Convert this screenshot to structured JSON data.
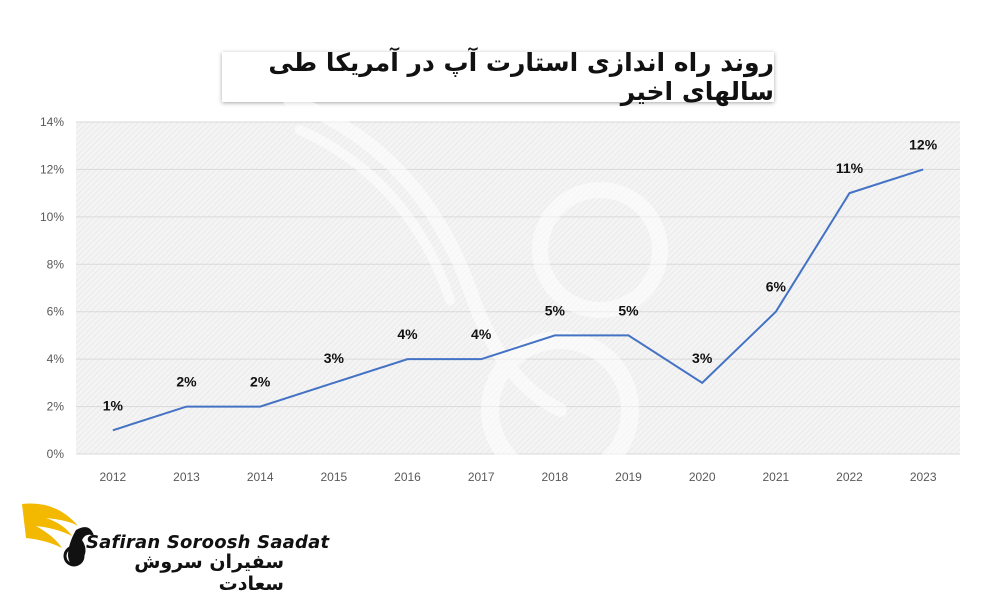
{
  "chart_data": {
    "type": "line",
    "title": "روند راه اندازی استارت آپ در آمریکا طی سالهای اخیر",
    "categories": [
      "2012",
      "2013",
      "2014",
      "2015",
      "2016",
      "2017",
      "2018",
      "2019",
      "2020",
      "2021",
      "2022",
      "2023"
    ],
    "series": [
      {
        "values": [
          1,
          2,
          2,
          3,
          4,
          4,
          5,
          5,
          3,
          6,
          11,
          12
        ]
      }
    ],
    "data_labels": [
      "1%",
      "2%",
      "2%",
      "3%",
      "4%",
      "4%",
      "5%",
      "5%",
      "3%",
      "6%",
      "11%",
      "12%"
    ],
    "ylim": [
      0,
      14
    ],
    "yticks": [
      "0%",
      "2%",
      "4%",
      "6%",
      "8%",
      "10%",
      "12%",
      "14%"
    ],
    "grid": true,
    "line_color": "#4472c4"
  },
  "logo": {
    "text_en": "Safiran Soroosh Saadat",
    "text_fa": "سفیران سروش سعادت",
    "colors": {
      "wing": "#f2b900",
      "dark": "#111111"
    }
  }
}
